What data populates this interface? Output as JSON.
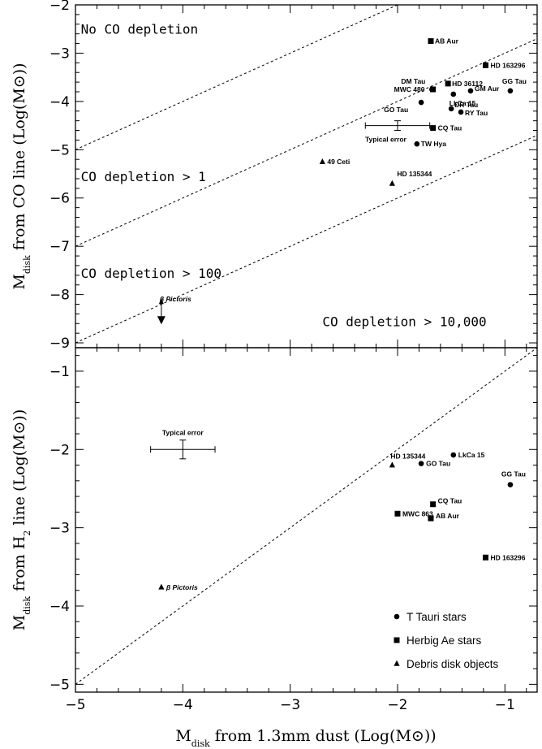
{
  "chart_data": [
    {
      "type": "scatter",
      "panel": "top",
      "ylabel": "M_disk from CO line (Log(M_sun))",
      "ylabel_main": "M",
      "ylabel_sub": "disk",
      "ylabel_rest": " from CO line (Log(M",
      "ylabel_sun": "⊙",
      "ylabel_end": "))",
      "xlim": [
        -5,
        -0.7
      ],
      "ylim": [
        -9.1,
        -2
      ],
      "yticks": [
        -9,
        -8,
        -7,
        -6,
        -5,
        -4,
        -3,
        -2
      ],
      "yticklabels": [
        "−9",
        "−8",
        "−7",
        "−6",
        "−5",
        "−4",
        "−3",
        "−2"
      ],
      "reference_lines": [
        {
          "slope": 1,
          "intercept": 0
        },
        {
          "slope": 1,
          "intercept": -2
        },
        {
          "slope": 1,
          "intercept": -4
        }
      ],
      "regions": [
        {
          "text": "No CO depletion",
          "x": -4.95,
          "y": -2.6
        },
        {
          "text": "CO depletion > 1",
          "x": -4.95,
          "y": -5.65
        },
        {
          "text": "CO depletion > 100",
          "x": -4.95,
          "y": -7.65
        },
        {
          "text": "CO depletion > 10,000",
          "x": -2.7,
          "y": -8.65
        }
      ],
      "points": [
        {
          "name": "AB Aur",
          "class": "herbig",
          "x": -1.69,
          "y": -2.75
        },
        {
          "name": "HD 163296",
          "class": "herbig",
          "x": -1.18,
          "y": -3.25
        },
        {
          "name": "DM Tau",
          "class": "ttauri",
          "x": -1.68,
          "y": -3.75
        },
        {
          "name": "HD 36112",
          "class": "herbig",
          "x": -1.53,
          "y": -3.63
        },
        {
          "name": "MWC 480",
          "class": "herbig",
          "x": -1.67,
          "y": -3.75
        },
        {
          "name": "GM Aur",
          "class": "ttauri",
          "x": -1.32,
          "y": -3.78
        },
        {
          "name": "GG Tau",
          "class": "ttauri",
          "x": -0.95,
          "y": -3.78
        },
        {
          "name": "LkCa 15",
          "class": "ttauri",
          "x": -1.48,
          "y": -3.85
        },
        {
          "name": "GO Tau",
          "class": "ttauri",
          "x": -1.78,
          "y": -4.02
        },
        {
          "name": "DR Tau",
          "class": "ttauri",
          "x": -1.5,
          "y": -4.15
        },
        {
          "name": "RY Tau",
          "class": "ttauri",
          "x": -1.41,
          "y": -4.22
        },
        {
          "name": "CQ Tau",
          "class": "herbig",
          "x": -1.67,
          "y": -4.55
        },
        {
          "name": "TW Hya",
          "class": "ttauri",
          "x": -1.82,
          "y": -4.88
        },
        {
          "name": "49 Ceti",
          "class": "debris",
          "x": -2.7,
          "y": -5.25
        },
        {
          "name": "HD 135344",
          "class": "debris",
          "x": -2.05,
          "y": -5.7
        },
        {
          "name": "β Pictoris",
          "class": "debris",
          "x": -4.2,
          "y": -8.38,
          "upper_limit": true
        }
      ],
      "typical_error": {
        "label": "Typical error",
        "x": -2.0,
        "y": -4.5,
        "xerr": 0.3,
        "yerr": 0.1
      }
    },
    {
      "type": "scatter",
      "panel": "bottom",
      "xlabel": "M_disk from 1.3mm dust (Log(M_sun))",
      "xlabel_main": "M",
      "xlabel_sub": "disk",
      "xlabel_rest": " from 1.3mm dust (Log(M",
      "xlabel_sun": "⊙",
      "xlabel_end": "))",
      "ylabel": "M_disk from H2 line (Log(M_sun))",
      "ylabel_main": "M",
      "ylabel_sub": "disk",
      "ylabel_rest": " from H",
      "ylabel_sub2": "2",
      "ylabel_rest2": " line (Log(M",
      "ylabel_sun": "⊙",
      "ylabel_end": "))",
      "xlim": [
        -5,
        -0.7
      ],
      "ylim": [
        -5.1,
        -0.7
      ],
      "xticks": [
        -5,
        -4,
        -3,
        -2,
        -1
      ],
      "xticklabels": [
        "−5",
        "−4",
        "−3",
        "−2",
        "−1"
      ],
      "yticks": [
        -5,
        -4,
        -3,
        -2,
        -1
      ],
      "yticklabels": [
        "−5",
        "−4",
        "−3",
        "−2",
        "−1"
      ],
      "reference_lines": [
        {
          "slope": 1,
          "intercept": 0
        }
      ],
      "points": [
        {
          "name": "HD 135344",
          "class": "debris",
          "x": -2.05,
          "y": -2.2
        },
        {
          "name": "LkCa 15",
          "class": "ttauri",
          "x": -1.48,
          "y": -2.07
        },
        {
          "name": "GO Tau",
          "class": "ttauri",
          "x": -1.78,
          "y": -2.18
        },
        {
          "name": "GG Tau",
          "class": "ttauri",
          "x": -0.95,
          "y": -2.45
        },
        {
          "name": "CQ Tau",
          "class": "herbig",
          "x": -1.67,
          "y": -2.7
        },
        {
          "name": "MWC 863",
          "class": "herbig",
          "x": -2.0,
          "y": -2.82
        },
        {
          "name": "AB Aur",
          "class": "herbig",
          "x": -1.69,
          "y": -2.88
        },
        {
          "name": "HD 163296",
          "class": "herbig",
          "x": -1.18,
          "y": -3.38
        },
        {
          "name": "β Pictoris",
          "class": "debris",
          "x": -4.2,
          "y": -3.76
        }
      ],
      "typical_error": {
        "label": "Typical error",
        "x": -4.0,
        "y": -2.0,
        "xerr": 0.3,
        "yerr": 0.12
      },
      "legend": {
        "placement": "bottom-right",
        "entries": [
          {
            "label": "T Tauri stars",
            "class": "ttauri"
          },
          {
            "label": "Herbig Ae stars",
            "class": "herbig"
          },
          {
            "label": "Debris disk objects",
            "class": "debris"
          }
        ]
      }
    }
  ]
}
